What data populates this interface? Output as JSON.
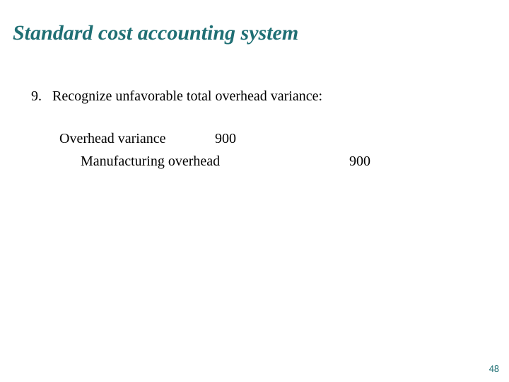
{
  "colors": {
    "title": "#1f6f74",
    "body_text": "#000000",
    "pagenum": "#1f6f74",
    "background": "#ffffff"
  },
  "typography": {
    "title_fontsize_pt": 30,
    "title_style": "italic bold",
    "body_fontsize_pt": 20,
    "pagenum_fontsize_pt": 14,
    "font_family": "Georgia / serif"
  },
  "title": "Standard cost accounting system",
  "list": {
    "number": "9.",
    "text": "Recognize unfavorable total overhead variance:"
  },
  "journal_entry": {
    "debit_account": "Overhead variance",
    "debit_amount": "900",
    "credit_account": "Manufacturing overhead",
    "credit_amount": "900"
  },
  "page_number": "48"
}
